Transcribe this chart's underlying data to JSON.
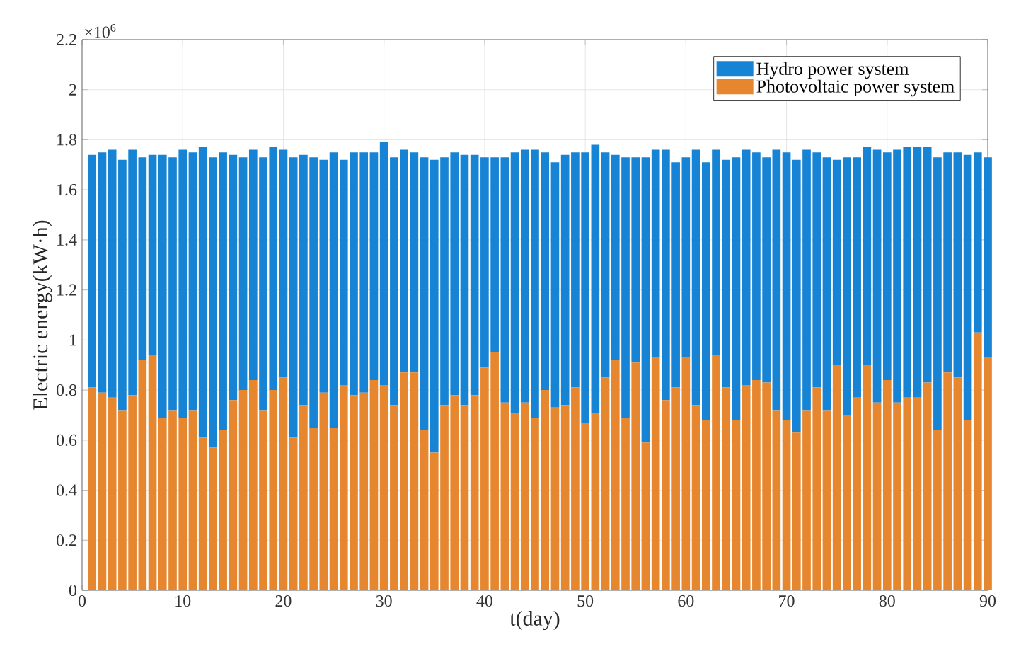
{
  "chart_data": {
    "type": "bar",
    "stacked": true,
    "xlabel": "t(day)",
    "ylabel": "Electric energy(kW·h)",
    "annotations": [
      "×10$^{6}$"
    ],
    "x": [
      1,
      2,
      3,
      4,
      5,
      6,
      7,
      8,
      9,
      10,
      11,
      12,
      13,
      14,
      15,
      16,
      17,
      18,
      19,
      20,
      21,
      22,
      23,
      24,
      25,
      26,
      27,
      28,
      29,
      30,
      31,
      32,
      33,
      34,
      35,
      36,
      37,
      38,
      39,
      40,
      41,
      42,
      43,
      44,
      45,
      46,
      47,
      48,
      49,
      50,
      51,
      52,
      53,
      54,
      55,
      56,
      57,
      58,
      59,
      60,
      61,
      62,
      63,
      64,
      65,
      66,
      67,
      68,
      69,
      70,
      71,
      72,
      73,
      74,
      75,
      76,
      77,
      78,
      79,
      80,
      81,
      82,
      83,
      84,
      85,
      86,
      87,
      88,
      89,
      90
    ],
    "series": [
      {
        "name": "Photovoltaic power system",
        "color": "#e6862e",
        "values": [
          0.81,
          0.79,
          0.77,
          0.72,
          0.78,
          0.92,
          0.94,
          0.69,
          0.72,
          0.69,
          0.72,
          0.61,
          0.57,
          0.64,
          0.76,
          0.8,
          0.84,
          0.72,
          0.8,
          0.85,
          0.61,
          0.74,
          0.65,
          0.79,
          0.65,
          0.82,
          0.78,
          0.79,
          0.84,
          0.82,
          0.74,
          0.87,
          0.87,
          0.64,
          0.55,
          0.74,
          0.78,
          0.74,
          0.78,
          0.89,
          0.95,
          0.75,
          0.71,
          0.75,
          0.69,
          0.8,
          0.73,
          0.74,
          0.81,
          0.67,
          0.71,
          0.85,
          0.92,
          0.69,
          0.91,
          0.59,
          0.93,
          0.76,
          0.81,
          0.93,
          0.74,
          0.68,
          0.94,
          0.81,
          0.68,
          0.82,
          0.84,
          0.83,
          0.72,
          0.68,
          0.63,
          0.72,
          0.81,
          0.72,
          0.9,
          0.7,
          0.77,
          0.9,
          0.75,
          0.84,
          0.75,
          0.77,
          0.77,
          0.83,
          0.64,
          0.87,
          0.85,
          0.68,
          1.03,
          0.93
        ]
      },
      {
        "name": "Hydro power system",
        "color": "#1683d4",
        "values": [
          0.93,
          0.96,
          0.99,
          1.0,
          0.98,
          0.81,
          0.8,
          1.05,
          1.01,
          1.07,
          1.03,
          1.16,
          1.16,
          1.11,
          0.98,
          0.93,
          0.92,
          1.01,
          0.97,
          0.91,
          1.12,
          1.0,
          1.08,
          0.93,
          1.1,
          0.9,
          0.97,
          0.96,
          0.91,
          0.97,
          0.99,
          0.89,
          0.88,
          1.09,
          1.17,
          0.99,
          0.97,
          1.0,
          0.96,
          0.84,
          0.78,
          0.98,
          1.04,
          1.01,
          1.07,
          0.95,
          0.98,
          1.0,
          0.94,
          1.08,
          1.07,
          0.9,
          0.82,
          1.04,
          0.82,
          1.14,
          0.83,
          1.0,
          0.9,
          0.8,
          1.02,
          1.03,
          0.82,
          0.91,
          1.05,
          0.94,
          0.91,
          0.9,
          1.04,
          1.07,
          1.09,
          1.04,
          0.94,
          1.01,
          0.82,
          1.03,
          0.96,
          0.87,
          1.01,
          0.91,
          1.01,
          1.0,
          1.0,
          0.94,
          1.09,
          0.88,
          0.9,
          1.06,
          0.72,
          0.8
        ]
      }
    ],
    "xlim": [
      0,
      90
    ],
    "xticks": [
      0,
      10,
      20,
      30,
      40,
      50,
      60,
      70,
      80,
      90
    ],
    "ylim": [
      0,
      2.2
    ],
    "yticks": [
      0,
      0.2,
      0.4,
      0.6,
      0.8,
      1,
      1.2,
      1.4,
      1.6,
      1.8,
      2,
      2.2
    ],
    "grid": true,
    "legend": "top right"
  }
}
